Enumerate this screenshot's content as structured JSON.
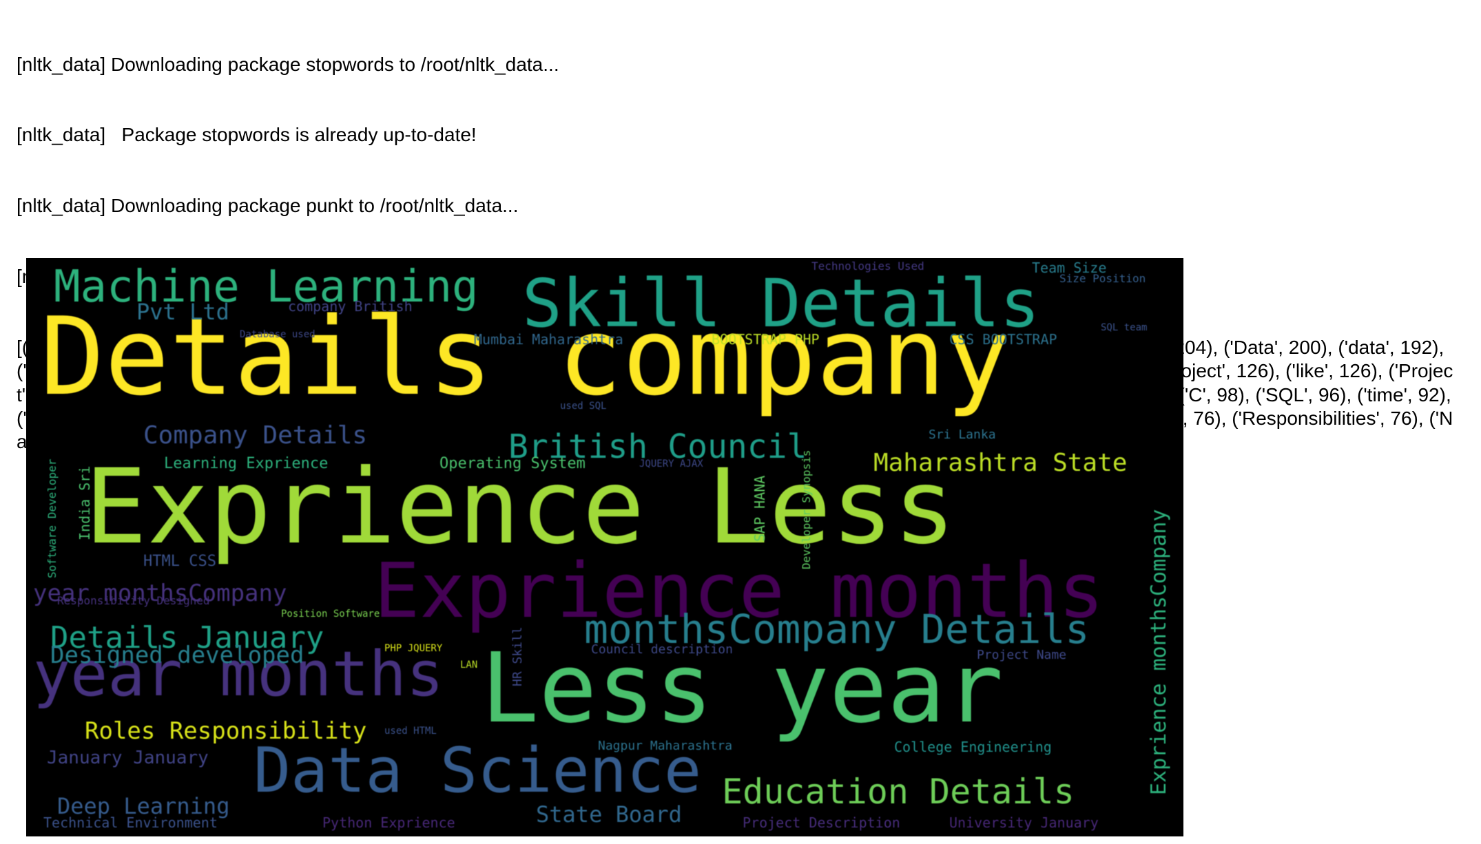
{
  "log_lines": [
    "[nltk_data] Downloading package stopwords to /root/nltk_data...",
    "[nltk_data]   Package stopwords is already up-to-date!",
    "[nltk_data] Downloading package punkt to /root/nltk_data...",
    "[nltk_data]   Unzipping tokenizers/punkt.zip."
  ],
  "counts_output": "[('Details', 484), ('Exprience', 446), ('months', 376), ('company', 330), ('description', 310), ('1', 290), ('year', 232), ('January', 216), ('Less', 204), ('Data', 200), ('data', 192), ('Skill', 166), ('Maharashtra', 166), ('6', 164), ('Python', 156), ('Science', 154), ('I', 146), ('Education', 142), ('College', 140), ('The', 126), ('project', 126), ('like', 126), ('Project', 124), ('Learning', 116), ('India', 114), ('Machine', 112), ('University', 112), ('Web', 106), ('using', 104), ('monthsCompany', 102), ('B', 98), ('C', 98), ('SQL', 96), ('time', 92), ('learning', 90), ('Mumbai', 90), ('Pune', 90), ('Arts', 90), ('A', 84), ('application', 84), ('Engineering', 78), ('24', 76), ('various', 76), ('Software', 76), ('Responsibilities', 76), ('Nagpur', 76), ('development', 74), ('Management', 74), ('projects', 74), ('Technologies', 72)]",
  "wordcloud": {
    "background": "#000000",
    "words": [
      {
        "text": "Details company",
        "color": "#fde725"
      },
      {
        "text": "Exprience Less",
        "color": "#a0da39"
      },
      {
        "text": "Less year",
        "color": "#4ac16d"
      },
      {
        "text": "Exprience months",
        "color": "#440154"
      },
      {
        "text": "Skill Details",
        "color": "#1fa187"
      },
      {
        "text": "Data Science",
        "color": "#365c8d"
      },
      {
        "text": "year months",
        "color": "#46327e"
      },
      {
        "text": "Machine Learning",
        "color": "#2db27d"
      },
      {
        "text": "monthsCompany Details",
        "color": "#277f8e"
      },
      {
        "text": "Education Details",
        "color": "#6ece58"
      },
      {
        "text": "British Council",
        "color": "#1f9e89"
      },
      {
        "text": "Maharashtra State",
        "color": "#bddf26"
      },
      {
        "text": "Details January",
        "color": "#1fa187"
      },
      {
        "text": "Company Details",
        "color": "#3b528b"
      },
      {
        "text": "year monthsCompany",
        "color": "#46327e"
      },
      {
        "text": "Roles Responsibility",
        "color": "#d8e219"
      },
      {
        "text": "Designed developed",
        "color": "#277f8e"
      },
      {
        "text": "Deep Learning",
        "color": "#365c8d"
      },
      {
        "text": "Pvt Ltd",
        "color": "#2c728e"
      },
      {
        "text": "January January",
        "color": "#414487"
      },
      {
        "text": "State Board",
        "color": "#31688e"
      },
      {
        "text": "Exprience monthsCompany",
        "color": "#2db27d"
      },
      {
        "text": "Learning Exprience",
        "color": "#2db27d"
      },
      {
        "text": "Operating System",
        "color": "#4ac16d"
      },
      {
        "text": "Mumbai Maharashtra",
        "color": "#31688e"
      },
      {
        "text": "BOOTSTRAP PHP",
        "color": "#bddf26"
      },
      {
        "text": "CSS BOOTSTRAP",
        "color": "#2c728e"
      },
      {
        "text": "company British",
        "color": "#414487"
      },
      {
        "text": "HTML CSS",
        "color": "#3b528b"
      },
      {
        "text": "Sri Lanka",
        "color": "#2c728e"
      },
      {
        "text": "Nagpur Maharashtra",
        "color": "#2c728e"
      },
      {
        "text": "College Engineering",
        "color": "#21918c"
      },
      {
        "text": "Council description",
        "color": "#3e4989"
      },
      {
        "text": "Project Name",
        "color": "#3e4989"
      },
      {
        "text": "Technical Environment",
        "color": "#3b528b"
      },
      {
        "text": "Python Exprience",
        "color": "#482878"
      },
      {
        "text": "Project Description",
        "color": "#472d7b"
      },
      {
        "text": "University January",
        "color": "#482878"
      },
      {
        "text": "Team Size",
        "color": "#287d8e"
      },
      {
        "text": "Size Position",
        "color": "#355f8d"
      },
      {
        "text": "Technologies Used",
        "color": "#443983"
      },
      {
        "text": "Database used",
        "color": "#3e4989"
      },
      {
        "text": "SQL team",
        "color": "#3b528b"
      },
      {
        "text": "used SQL",
        "color": "#3b528b"
      },
      {
        "text": "Position Software",
        "color": "#7ad151"
      },
      {
        "text": "Responsibility Designed",
        "color": "#46327e"
      },
      {
        "text": "PHP JQUERY",
        "color": "#d8e219"
      },
      {
        "text": "LAN",
        "color": "#bddf26"
      },
      {
        "text": "used HTML",
        "color": "#3b528b"
      },
      {
        "text": "JQUERY AJAX",
        "color": "#3e4989"
      },
      {
        "text": "India Sri",
        "color": "#4ac16d"
      },
      {
        "text": "Software Developer",
        "color": "#2db27d"
      },
      {
        "text": "SAP HANA",
        "color": "#5ec962"
      },
      {
        "text": "Developer Synopsis",
        "color": "#5ec962"
      },
      {
        "text": "HR Skill",
        "color": "#3e4989"
      }
    ]
  }
}
